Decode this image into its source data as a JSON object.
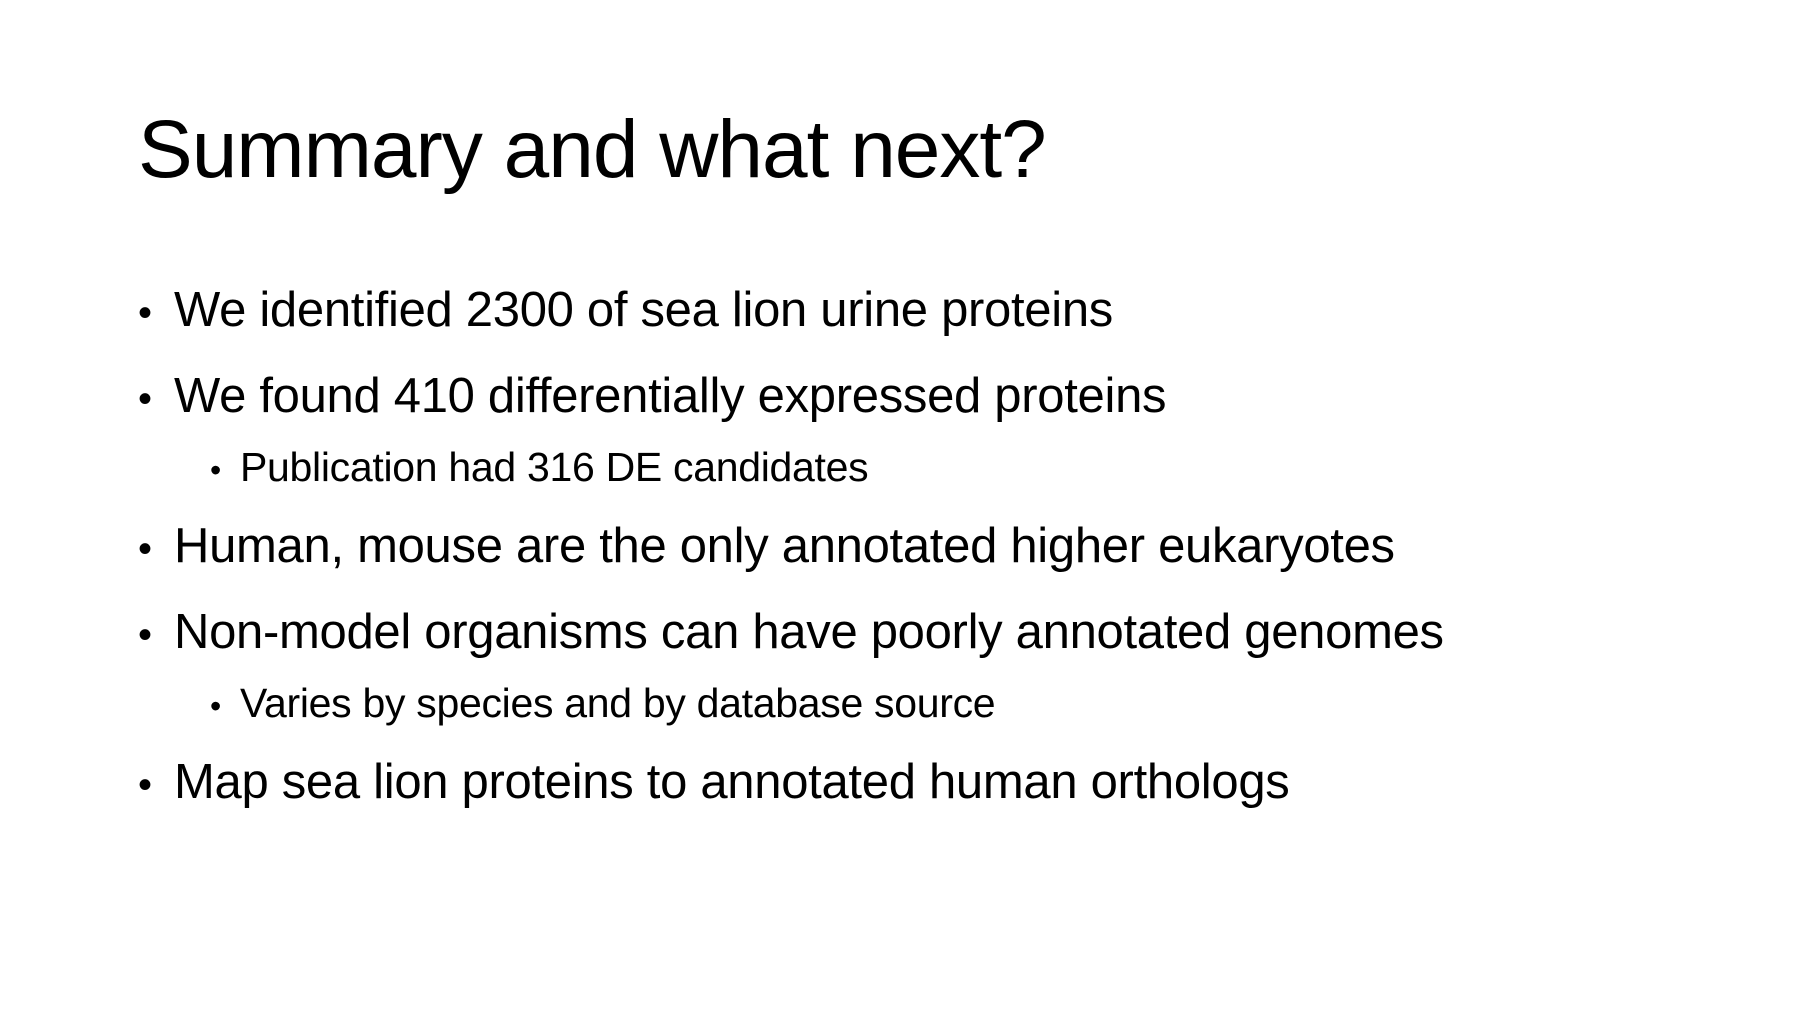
{
  "slide": {
    "title": "Summary and what next?",
    "bullet_glyph": "•",
    "bullets": [
      {
        "level": 1,
        "text": "We identified 2300 of sea lion urine proteins"
      },
      {
        "level": 1,
        "text": "We found 410 differentially expressed proteins"
      },
      {
        "level": 2,
        "text": "Publication had 316 DE candidates"
      },
      {
        "level": 1,
        "text": "Human, mouse are the only annotated higher eukaryotes"
      },
      {
        "level": 1,
        "text": "Non-model organisms can have poorly annotated genomes"
      },
      {
        "level": 2,
        "text": "Varies by species and by database source"
      },
      {
        "level": 1,
        "text": "Map sea lion proteins to annotated human orthologs"
      }
    ]
  }
}
